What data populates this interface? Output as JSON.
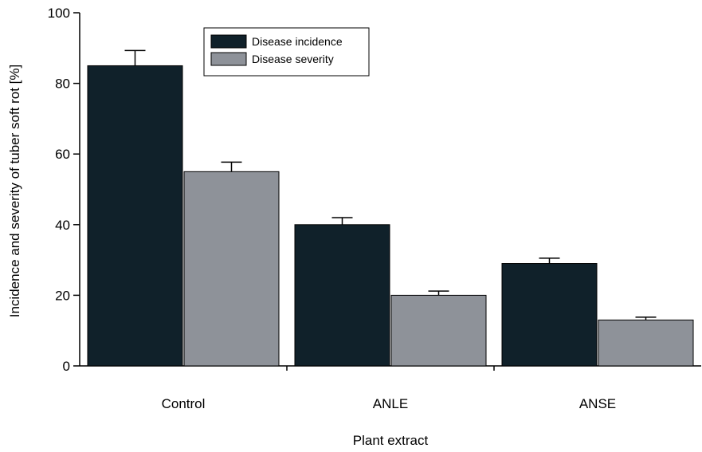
{
  "chart_data": {
    "type": "bar",
    "title": "",
    "xlabel": "Plant extract",
    "ylabel": "Incidence and severity of tuber soft rot [%]",
    "ylim": [
      0,
      100
    ],
    "yticks": [
      0,
      20,
      40,
      60,
      80,
      100
    ],
    "categories": [
      "Control",
      "ANLE",
      "ANSE"
    ],
    "series": [
      {
        "name": "Disease incidence",
        "color": "#10212a",
        "values": [
          85,
          40,
          29
        ],
        "errors": [
          4.3,
          2.0,
          1.5
        ]
      },
      {
        "name": "Disease severity",
        "color": "#8e9299",
        "values": [
          55,
          20,
          13
        ],
        "errors": [
          2.7,
          1.2,
          0.8
        ]
      }
    ],
    "error_bars": "upper",
    "grid": false,
    "legend_position": "top-center"
  }
}
